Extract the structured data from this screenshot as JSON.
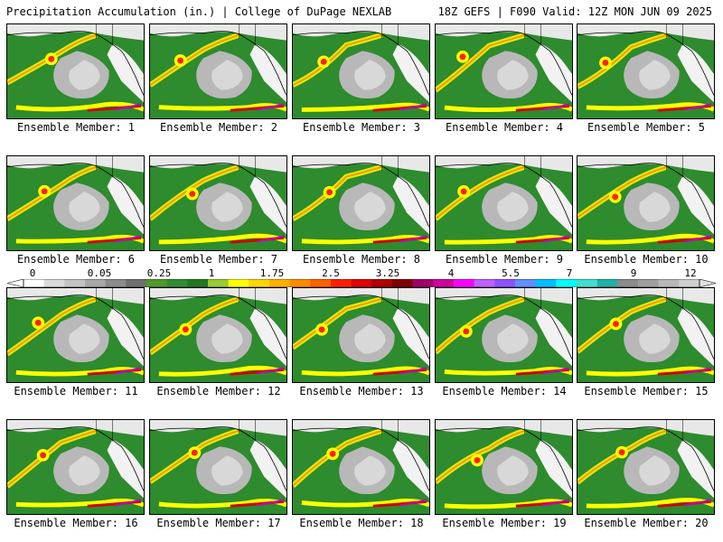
{
  "header": {
    "title": "Precipitation Accumulation (in.) | College of DuPage NEXLAB",
    "run_info": "18Z GEFS | F090 Valid: 12Z MON JUN 09 2025"
  },
  "members": [
    {
      "label": "Ensemble Member: 1"
    },
    {
      "label": "Ensemble Member: 2"
    },
    {
      "label": "Ensemble Member: 3"
    },
    {
      "label": "Ensemble Member: 4"
    },
    {
      "label": "Ensemble Member: 5"
    },
    {
      "label": "Ensemble Member: 6"
    },
    {
      "label": "Ensemble Member: 7"
    },
    {
      "label": "Ensemble Member: 8"
    },
    {
      "label": "Ensemble Member: 9"
    },
    {
      "label": "Ensemble Member: 10"
    },
    {
      "label": "Ensemble Member: 11"
    },
    {
      "label": "Ensemble Member: 12"
    },
    {
      "label": "Ensemble Member: 13"
    },
    {
      "label": "Ensemble Member: 14"
    },
    {
      "label": "Ensemble Member: 15"
    },
    {
      "label": "Ensemble Member: 16"
    },
    {
      "label": "Ensemble Member: 17"
    },
    {
      "label": "Ensemble Member: 18"
    },
    {
      "label": "Ensemble Member: 19"
    },
    {
      "label": "Ensemble Member: 20"
    }
  ],
  "color_scale": {
    "ticks": [
      "0",
      "0.05",
      "0.25",
      "1",
      "1.75",
      "2.5",
      "3.25",
      "4",
      "5.5",
      "7",
      "9",
      "12"
    ],
    "colors": [
      "#ffffff",
      "#dcdcdc",
      "#c4c4c4",
      "#a8a8a8",
      "#8c8c8c",
      "#707070",
      "#4e9a2a",
      "#2f8f2f",
      "#1f7a1f",
      "#9acd32",
      "#ffff00",
      "#ffd700",
      "#ffb000",
      "#ff8c00",
      "#ff6000",
      "#ff2000",
      "#e00000",
      "#b00000",
      "#800000",
      "#a0006a",
      "#d000a0",
      "#ff00ff",
      "#c060ff",
      "#9050ff",
      "#6090ff",
      "#00c0ff",
      "#00ffff",
      "#40e0d0",
      "#20b2aa",
      "#8c8c8c",
      "#a0a0a0",
      "#b8b8b8",
      "#d0d0d0"
    ]
  }
}
